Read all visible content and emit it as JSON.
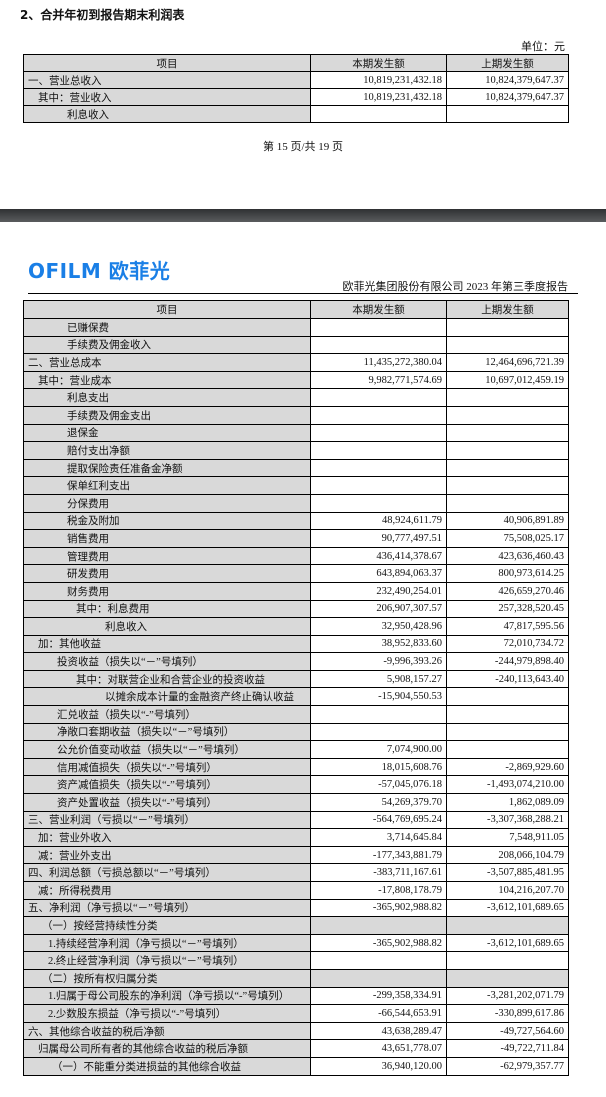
{
  "page1": {
    "title": "2、合并年初到报告期末利润表",
    "unit": "单位：元",
    "columns": [
      "项目",
      "本期发生额",
      "上期发生额"
    ],
    "rows": [
      {
        "label": "一、营业总收入",
        "current": "10,819,231,432.18",
        "prior": "10,824,379,647.37"
      },
      {
        "label": "其中：营业收入",
        "current": "10,819,231,432.18",
        "prior": "10,824,379,647.37"
      },
      {
        "label": "利息收入",
        "current": "",
        "prior": ""
      }
    ],
    "footer": "第 15 页/共 19 页"
  },
  "page2": {
    "logo": "OFILM 欧菲光",
    "brand_color": "#1a7fe6",
    "report_title": "欧菲光集团股份有限公司 2023 年第三季度报告",
    "columns": [
      "项目",
      "本期发生额",
      "上期发生额"
    ],
    "rows": [
      {
        "label": "已赚保费",
        "current": "",
        "prior": ""
      },
      {
        "label": "手续费及佣金收入",
        "current": "",
        "prior": ""
      },
      {
        "label": "二、营业总成本",
        "current": "11,435,272,380.04",
        "prior": "12,464,696,721.39"
      },
      {
        "label": "其中：营业成本",
        "current": "9,982,771,574.69",
        "prior": "10,697,012,459.19"
      },
      {
        "label": "利息支出",
        "current": "",
        "prior": ""
      },
      {
        "label": "手续费及佣金支出",
        "current": "",
        "prior": ""
      },
      {
        "label": "退保金",
        "current": "",
        "prior": ""
      },
      {
        "label": "赔付支出净额",
        "current": "",
        "prior": ""
      },
      {
        "label": "提取保险责任准备金净额",
        "current": "",
        "prior": ""
      },
      {
        "label": "保单红利支出",
        "current": "",
        "prior": ""
      },
      {
        "label": "分保费用",
        "current": "",
        "prior": ""
      },
      {
        "label": "税金及附加",
        "current": "48,924,611.79",
        "prior": "40,906,891.89"
      },
      {
        "label": "销售费用",
        "current": "90,777,497.51",
        "prior": "75,508,025.17"
      },
      {
        "label": "管理费用",
        "current": "436,414,378.67",
        "prior": "423,636,460.43"
      },
      {
        "label": "研发费用",
        "current": "643,894,063.37",
        "prior": "800,973,614.25"
      },
      {
        "label": "财务费用",
        "current": "232,490,254.01",
        "prior": "426,659,270.46"
      },
      {
        "label": "其中：利息费用",
        "current": "206,907,307.57",
        "prior": "257,328,520.45"
      },
      {
        "label": "利息收入",
        "current": "32,950,428.96",
        "prior": "47,817,595.56"
      },
      {
        "label": "加：其他收益",
        "current": "38,952,833.60",
        "prior": "72,010,734.72"
      },
      {
        "label": "投资收益（损失以“－”号填列）",
        "current": "-9,996,393.26",
        "prior": "-244,979,898.40"
      },
      {
        "label": "其中：对联营企业和合营企业的投资收益",
        "current": "5,908,157.27",
        "prior": "-240,113,643.40"
      },
      {
        "label": "以摊余成本计量的金融资产终止确认收益",
        "current": "-15,904,550.53",
        "prior": ""
      },
      {
        "label": "汇兑收益（损失以“-”号填列）",
        "current": "",
        "prior": ""
      },
      {
        "label": "净敞口套期收益（损失以“－”号填列）",
        "current": "",
        "prior": ""
      },
      {
        "label": "公允价值变动收益（损失以“－”号填列）",
        "current": "7,074,900.00",
        "prior": ""
      },
      {
        "label": "信用减值损失（损失以“-”号填列）",
        "current": "18,015,608.76",
        "prior": "-2,869,929.60"
      },
      {
        "label": "资产减值损失（损失以“-”号填列）",
        "current": "-57,045,076.18",
        "prior": "-1,493,074,210.00"
      },
      {
        "label": "资产处置收益（损失以“-”号填列）",
        "current": "54,269,379.70",
        "prior": "1,862,089.09"
      },
      {
        "label": "三、营业利润（亏损以“－”号填列）",
        "current": "-564,769,695.24",
        "prior": "-3,307,368,288.21"
      },
      {
        "label": "加：营业外收入",
        "current": "3,714,645.84",
        "prior": "7,548,911.05"
      },
      {
        "label": "减：营业外支出",
        "current": "-177,343,881.79",
        "prior": "208,066,104.79"
      },
      {
        "label": "四、利润总额（亏损总额以“－”号填列）",
        "current": "-383,711,167.61",
        "prior": "-3,507,885,481.95"
      },
      {
        "label": "减：所得税费用",
        "current": "-17,808,178.79",
        "prior": "104,216,207.70"
      },
      {
        "label": "五、净利润（净亏损以“－”号填列）",
        "current": "-365,902,988.82",
        "prior": "-3,612,101,689.65"
      },
      {
        "label": "（一）按经营持续性分类",
        "current": "",
        "prior": ""
      },
      {
        "label": "1.持续经营净利润（净亏损以“－”号填列）",
        "current": "-365,902,988.82",
        "prior": "-3,612,101,689.65"
      },
      {
        "label": "2.终止经营净利润（净亏损以“－”号填列）",
        "current": "",
        "prior": ""
      },
      {
        "label": "（二）按所有权归属分类",
        "current": "",
        "prior": ""
      },
      {
        "label": "1.归属于母公司股东的净利润（净亏损以“-”号填列）",
        "current": "-299,358,334.91",
        "prior": "-3,281,202,071.79"
      },
      {
        "label": "2.少数股东损益（净亏损以“-”号填列）",
        "current": "-66,544,653.91",
        "prior": "-330,899,617.86"
      },
      {
        "label": "六、其他综合收益的税后净额",
        "current": "43,638,289.47",
        "prior": "-49,727,564.60"
      },
      {
        "label": "归属母公司所有者的其他综合收益的税后净额",
        "current": "43,651,778.07",
        "prior": "-49,722,711.84"
      },
      {
        "label": "（一）不能重分类进损益的其他综合收益",
        "current": "36,940,120.00",
        "prior": "-62,979,357.77"
      }
    ]
  }
}
